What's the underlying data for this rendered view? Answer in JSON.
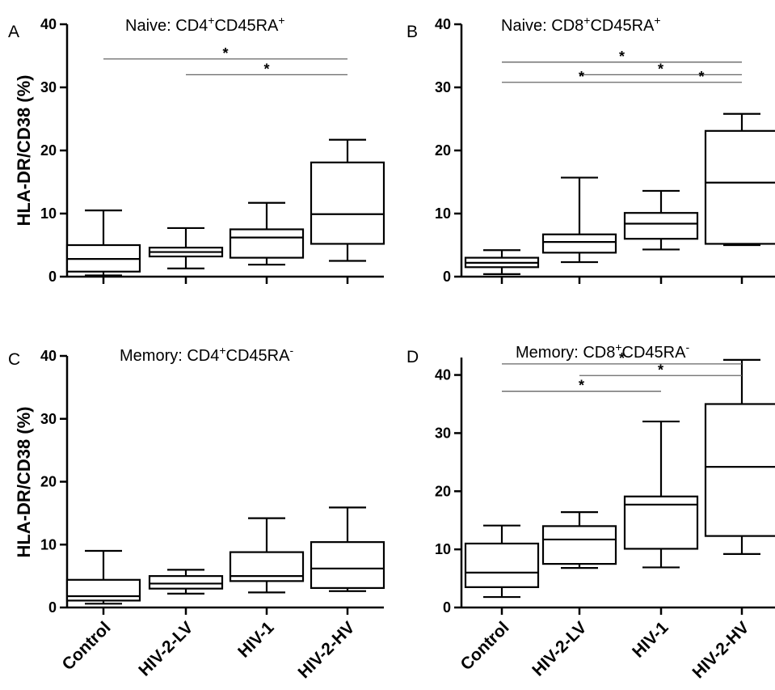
{
  "figure": {
    "ylabel": "HLA-DR/CD38 (%)",
    "categories": [
      "Control",
      "HIV-2-LV",
      "HIV-1",
      "HIV-2-HV"
    ]
  },
  "chart_data": [
    {
      "type": "box",
      "panel": "A",
      "title": "Naive: CD4+CD45RA+",
      "title_parts": {
        "pre": "Naive: CD4",
        "sup1": "+",
        "mid": "CD45RA",
        "sup2": "+"
      },
      "ylabel": "HLA-DR/CD38 (%)",
      "ylim": [
        0,
        40
      ],
      "yticks": [
        0,
        10,
        20,
        30,
        40
      ],
      "categories": [
        "Control",
        "HIV-2-LV",
        "HIV-1",
        "HIV-2-HV"
      ],
      "boxes": [
        {
          "min": 0.2,
          "q1": 0.8,
          "median": 2.8,
          "q3": 5.0,
          "max": 10.5
        },
        {
          "min": 1.3,
          "q1": 3.2,
          "median": 3.9,
          "q3": 4.6,
          "max": 7.7
        },
        {
          "min": 1.9,
          "q1": 3.0,
          "median": 6.2,
          "q3": 7.5,
          "max": 11.7
        },
        {
          "min": 2.5,
          "q1": 5.2,
          "median": 9.9,
          "q3": 18.1,
          "max": 21.7
        }
      ],
      "significance": [
        {
          "from": "Control",
          "to": "HIV-2-HV",
          "y": 34.5,
          "label": "*"
        },
        {
          "from": "HIV-2-LV",
          "to": "HIV-2-HV",
          "y": 32.0,
          "label": "*"
        }
      ],
      "x_tick_labels_shown": false
    },
    {
      "type": "box",
      "panel": "B",
      "title": "Naive: CD8+CD45RA+",
      "title_parts": {
        "pre": "Naive: CD8",
        "sup1": "+",
        "mid": "CD45RA",
        "sup2": "+"
      },
      "ylim": [
        0,
        40
      ],
      "yticks": [
        0,
        10,
        20,
        30,
        40
      ],
      "categories": [
        "Control",
        "HIV-2-LV",
        "HIV-1",
        "HIV-2-HV"
      ],
      "boxes": [
        {
          "min": 0.4,
          "q1": 1.5,
          "median": 2.2,
          "q3": 3.0,
          "max": 4.2
        },
        {
          "min": 2.3,
          "q1": 3.8,
          "median": 5.5,
          "q3": 6.7,
          "max": 15.7
        },
        {
          "min": 4.3,
          "q1": 6.0,
          "median": 8.4,
          "q3": 10.1,
          "max": 13.6
        },
        {
          "min": 5.0,
          "q1": 5.2,
          "median": 14.9,
          "q3": 23.1,
          "max": 25.8
        }
      ],
      "significance": [
        {
          "from": "Control",
          "to": "HIV-2-HV",
          "y": 34.0,
          "label": "*"
        },
        {
          "from": "HIV-2-LV",
          "to": "HIV-2-HV",
          "y": 32.0,
          "label": "*"
        },
        {
          "from": "Control",
          "to": "HIV-1",
          "y": 30.8,
          "label": "*"
        },
        {
          "from": "HIV-1",
          "to": "HIV-2-HV",
          "y": 30.8,
          "label": "*"
        }
      ],
      "x_tick_labels_shown": false
    },
    {
      "type": "box",
      "panel": "C",
      "title": "Memory: CD4+CD45RA-",
      "title_parts": {
        "pre": "Memory: CD4",
        "sup1": "+",
        "mid": "CD45RA",
        "sup2": "-"
      },
      "ylabel": "HLA-DR/CD38 (%)",
      "ylim": [
        0,
        40
      ],
      "yticks": [
        0,
        10,
        20,
        30,
        40
      ],
      "categories": [
        "Control",
        "HIV-2-LV",
        "HIV-1",
        "HIV-2-HV"
      ],
      "boxes": [
        {
          "min": 0.6,
          "q1": 1.1,
          "median": 1.8,
          "q3": 4.4,
          "max": 9.0
        },
        {
          "min": 2.2,
          "q1": 3.0,
          "median": 3.8,
          "q3": 5.0,
          "max": 6.0
        },
        {
          "min": 2.4,
          "q1": 4.2,
          "median": 5.0,
          "q3": 8.8,
          "max": 14.2
        },
        {
          "min": 2.6,
          "q1": 3.1,
          "median": 6.2,
          "q3": 10.4,
          "max": 15.9
        }
      ],
      "significance": [],
      "x_tick_labels_shown": true
    },
    {
      "type": "box",
      "panel": "D",
      "title": "Memory: CD8+CD45RA-",
      "title_parts": {
        "pre": "Memory: CD8",
        "sup1": "+",
        "mid": "CD45RA",
        "sup2": "-"
      },
      "ylim": [
        0,
        43
      ],
      "yticks": [
        0,
        10,
        20,
        30,
        40
      ],
      "categories": [
        "Control",
        "HIV-2-LV",
        "HIV-1",
        "HIV-2-HV"
      ],
      "boxes": [
        {
          "min": 1.8,
          "q1": 3.5,
          "median": 6.0,
          "q3": 11.0,
          "max": 14.1
        },
        {
          "min": 6.8,
          "q1": 7.5,
          "median": 11.7,
          "q3": 14.0,
          "max": 16.4
        },
        {
          "min": 6.9,
          "q1": 10.1,
          "median": 17.7,
          "q3": 19.1,
          "max": 32.0
        },
        {
          "min": 9.2,
          "q1": 12.3,
          "median": 24.2,
          "q3": 35.0,
          "max": 42.6
        }
      ],
      "significance": [
        {
          "from": "Control",
          "to": "HIV-2-HV",
          "y": 41.9,
          "label": "*"
        },
        {
          "from": "HIV-2-LV",
          "to": "HIV-2-HV",
          "y": 39.9,
          "label": "*"
        },
        {
          "from": "Control",
          "to": "HIV-1",
          "y": 37.2,
          "label": "*"
        }
      ],
      "x_tick_labels_shown": true
    }
  ]
}
